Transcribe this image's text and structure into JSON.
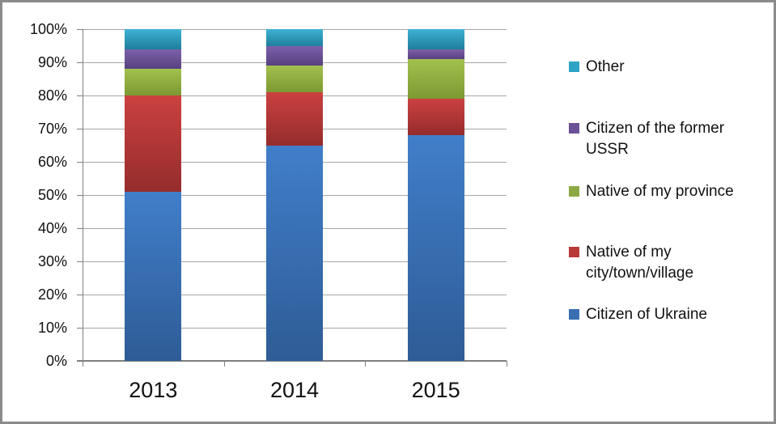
{
  "chart_data": {
    "type": "bar",
    "stacked": true,
    "units": "percent",
    "title": "",
    "xlabel": "",
    "ylabel": "",
    "grid": true,
    "categories": [
      "2013",
      "2014",
      "2015"
    ],
    "series": [
      {
        "name": "Citizen of Ukraine",
        "values": [
          51,
          65,
          68
        ],
        "color_top": "#417ECA",
        "color_bottom": "#2E5C96",
        "legend_color": "#3A70B2"
      },
      {
        "name": "Native of my city/town/village",
        "values": [
          29,
          16,
          11
        ],
        "color_top": "#CB4140",
        "color_bottom": "#952C2C",
        "legend_color": "#B93937"
      },
      {
        "name": "Native of my province",
        "values": [
          8,
          8,
          12
        ],
        "color_top": "#A2C14E",
        "color_bottom": "#7D9932",
        "legend_color": "#8DA943"
      },
      {
        "name": "Citizen of the former USSR",
        "values": [
          6,
          6,
          3
        ],
        "color_top": "#7B61AA",
        "color_bottom": "#57407F",
        "legend_color": "#6B5197"
      },
      {
        "name": "Other",
        "values": [
          6,
          5,
          6
        ],
        "color_top": "#3DB2D4",
        "color_bottom": "#1F7E9B",
        "legend_color": "#2EA4C5"
      }
    ],
    "y_axis": {
      "min": 0,
      "max": 100,
      "step": 10,
      "tick_labels": [
        "0%",
        "10%",
        "20%",
        "30%",
        "40%",
        "50%",
        "60%",
        "70%",
        "80%",
        "90%",
        "100%"
      ]
    },
    "legend": {
      "position": "right",
      "entries": [
        {
          "series_index": 4,
          "lines": [
            "Other"
          ]
        },
        {
          "series_index": 3,
          "lines": [
            "Citizen of the former",
            "USSR"
          ]
        },
        {
          "series_index": 2,
          "lines": [
            "Native of my province"
          ]
        },
        {
          "series_index": 1,
          "lines": [
            "Native of my",
            "city/town/village"
          ]
        },
        {
          "series_index": 0,
          "lines": [
            "Citizen of Ukraine"
          ]
        }
      ]
    }
  }
}
